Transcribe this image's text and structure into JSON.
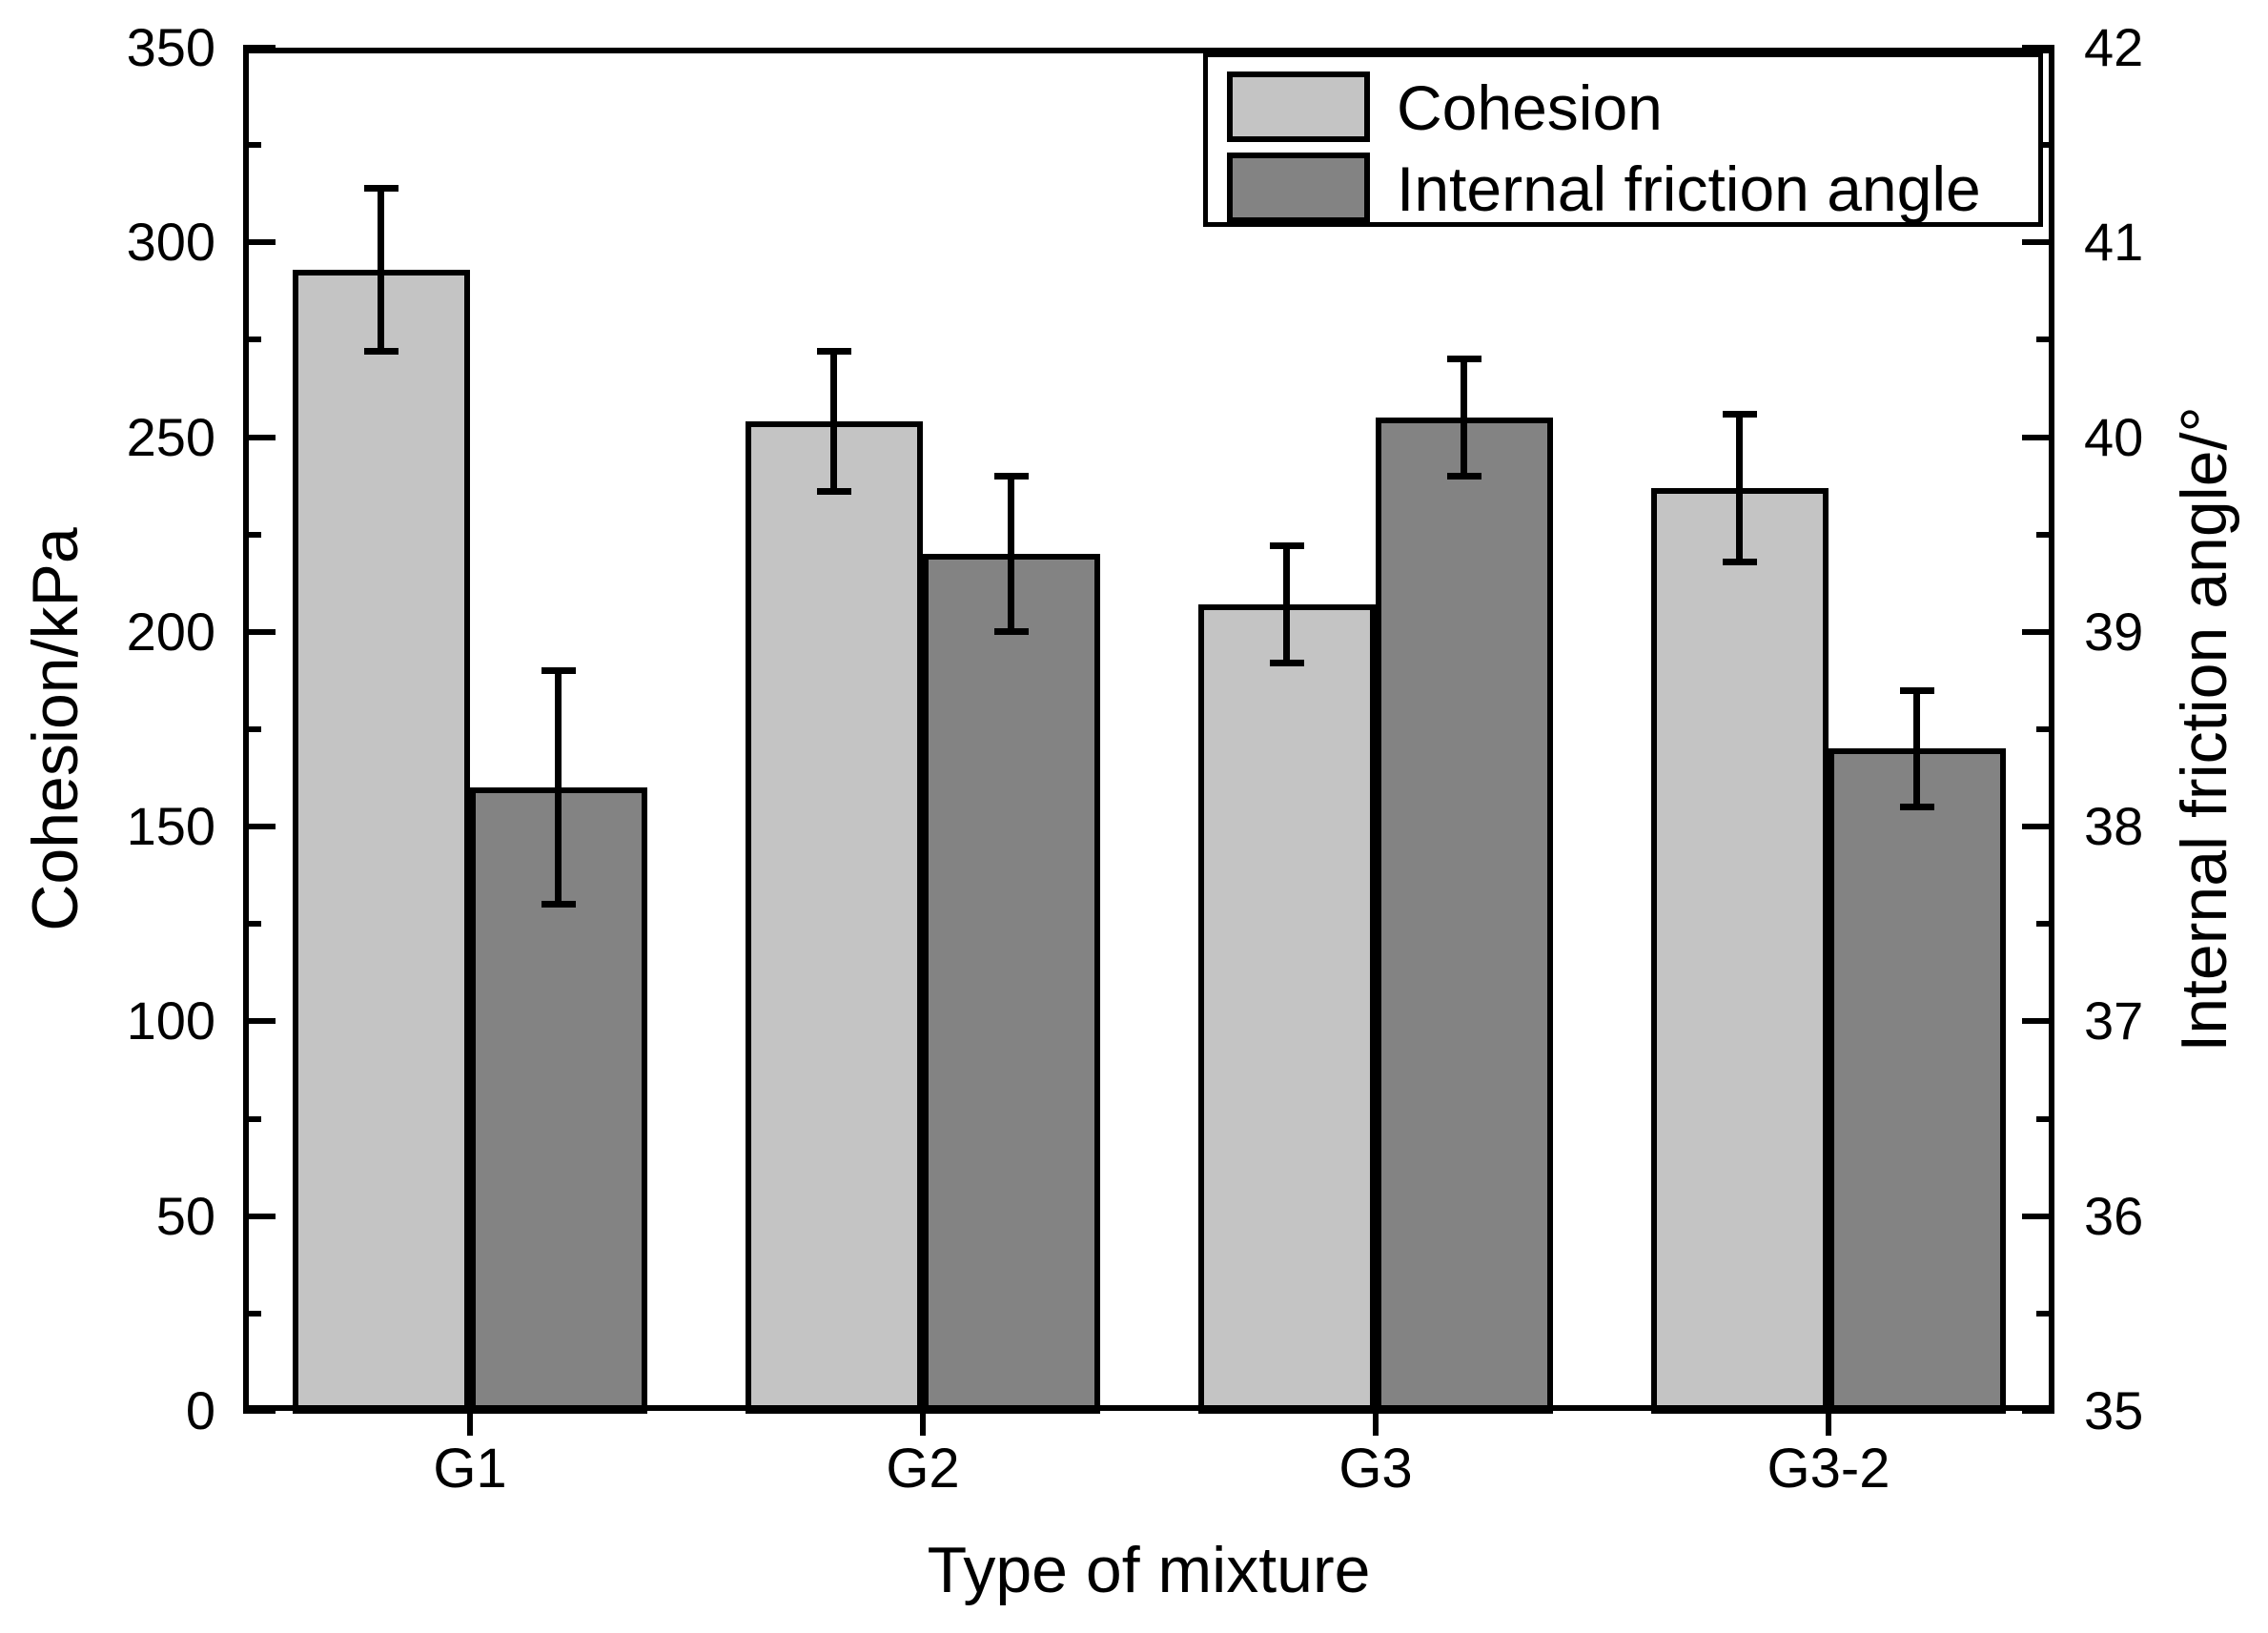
{
  "chart_data": {
    "type": "bar",
    "title": "",
    "xlabel": "Type of mixture",
    "ylabel_left": "Cohesion/kPa",
    "ylabel_right": "Internal friction angle/°",
    "categories": [
      "G1",
      "G2",
      "G3",
      "G3-2"
    ],
    "series": [
      {
        "name": "Cohesion",
        "axis": "left",
        "color": "#c4c4c4",
        "values": [
          293,
          254,
          207,
          237
        ],
        "errors": [
          21,
          18,
          15,
          19
        ]
      },
      {
        "name": "Internal friction angle",
        "axis": "right",
        "color": "#838383",
        "values": [
          38.2,
          39.4,
          40.1,
          38.4
        ],
        "errors": [
          0.6,
          0.4,
          0.3,
          0.3
        ]
      }
    ],
    "left_axis": {
      "min": 0,
      "max": 350,
      "major_step": 50,
      "minor_step": 25,
      "tick_labels": [
        "0",
        "50",
        "100",
        "150",
        "200",
        "250",
        "300",
        "350"
      ]
    },
    "right_axis": {
      "min": 35,
      "max": 42,
      "major_step": 1,
      "minor_step": 0.5,
      "tick_labels": [
        "35",
        "36",
        "37",
        "38",
        "39",
        "40",
        "41",
        "42"
      ]
    },
    "grid": false,
    "legend_position": "top-right",
    "bar_outline_color": "#000000",
    "background_color": "#ffffff"
  },
  "legend": {
    "items": [
      {
        "label": "Cohesion",
        "color": "#c4c4c4"
      },
      {
        "label": "Internal friction angle",
        "color": "#838383"
      }
    ]
  }
}
